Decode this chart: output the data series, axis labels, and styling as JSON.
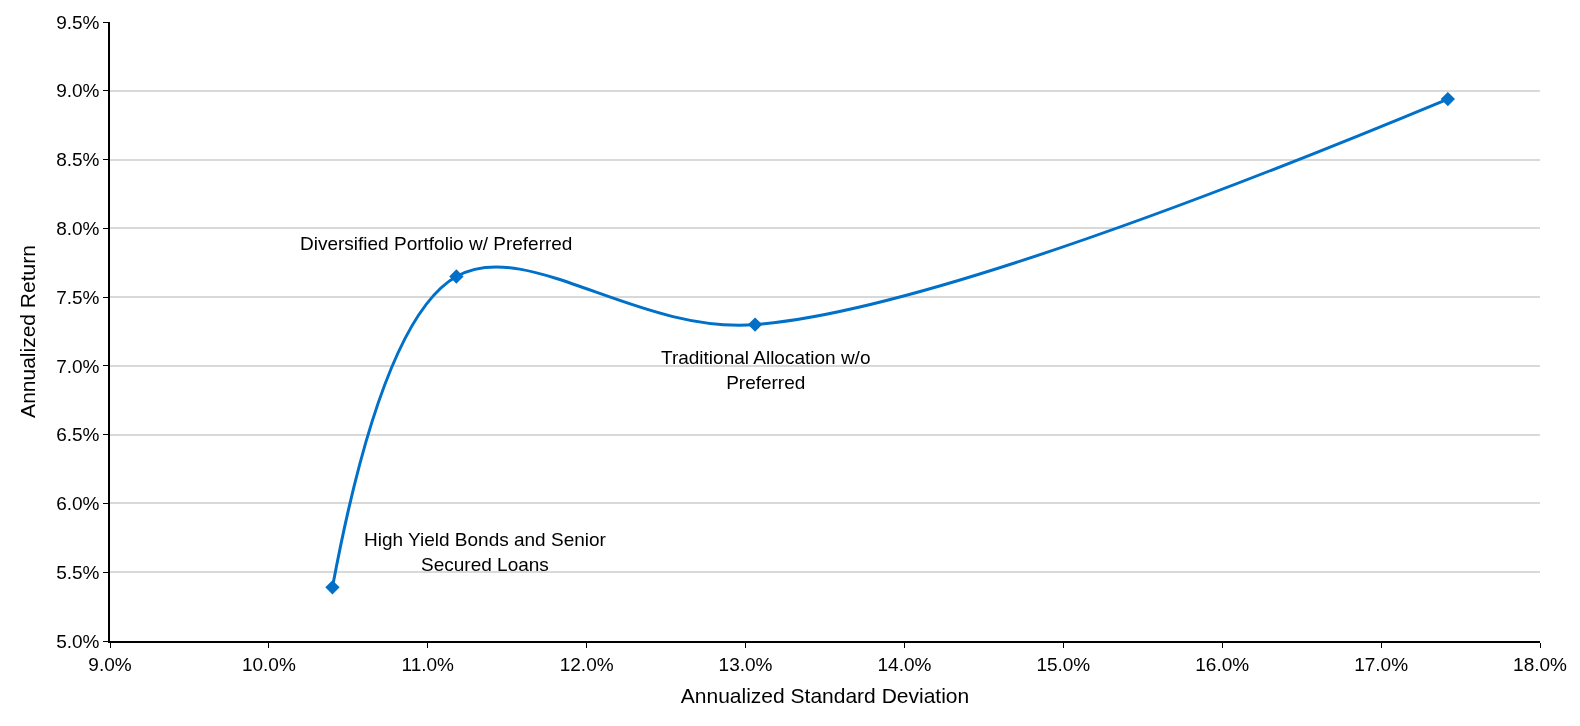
{
  "chart_data": {
    "type": "line",
    "xlabel": "Annualized Standard Deviation",
    "ylabel": "Annualized Return",
    "x": [
      10.4,
      11.18,
      13.06,
      17.42
    ],
    "series": [
      {
        "color": "#0070c8",
        "values": [
          5.39,
          7.65,
          7.3,
          8.94
        ]
      }
    ],
    "marker": "diamond",
    "line_style": "solid",
    "grid": "y",
    "xlim": [
      9,
      18
    ],
    "ylim": [
      5,
      9.5
    ],
    "xticks": [
      {
        "value": 9,
        "label": "9.0%"
      },
      {
        "value": 10,
        "label": "10.0%"
      },
      {
        "value": 11,
        "label": "11.0%"
      },
      {
        "value": 12,
        "label": "12.0%"
      },
      {
        "value": 13,
        "label": "13.0%"
      },
      {
        "value": 14,
        "label": "14.0%"
      },
      {
        "value": 15,
        "label": "15.0%"
      },
      {
        "value": 16,
        "label": "16.0%"
      },
      {
        "value": 17,
        "label": "17.0%"
      },
      {
        "value": 18,
        "label": "18.0%"
      }
    ],
    "yticks": [
      {
        "value": 5,
        "label": "5.0%"
      },
      {
        "value": 5.5,
        "label": "5.5%"
      },
      {
        "value": 6,
        "label": "6.0%"
      },
      {
        "value": 6.5,
        "label": "6.5%"
      },
      {
        "value": 7,
        "label": "7.0%"
      },
      {
        "value": 7.5,
        "label": "7.5%"
      },
      {
        "value": 8,
        "label": "8.0%"
      },
      {
        "value": 8.5,
        "label": "8.5%"
      },
      {
        "value": 9,
        "label": "9.0%"
      },
      {
        "value": 9.5,
        "label": "9.5%"
      }
    ],
    "annotations": [
      {
        "text": "High Yield Bonds and Senior Secured Loans",
        "x": 10.4,
        "y": 5.39
      },
      {
        "text": "Diversified Portfolio w/ Preferred",
        "x": 11.18,
        "y": 7.65
      },
      {
        "text": "Traditional Allocation w/o Preferred",
        "x": 13.06,
        "y": 7.3
      }
    ]
  }
}
